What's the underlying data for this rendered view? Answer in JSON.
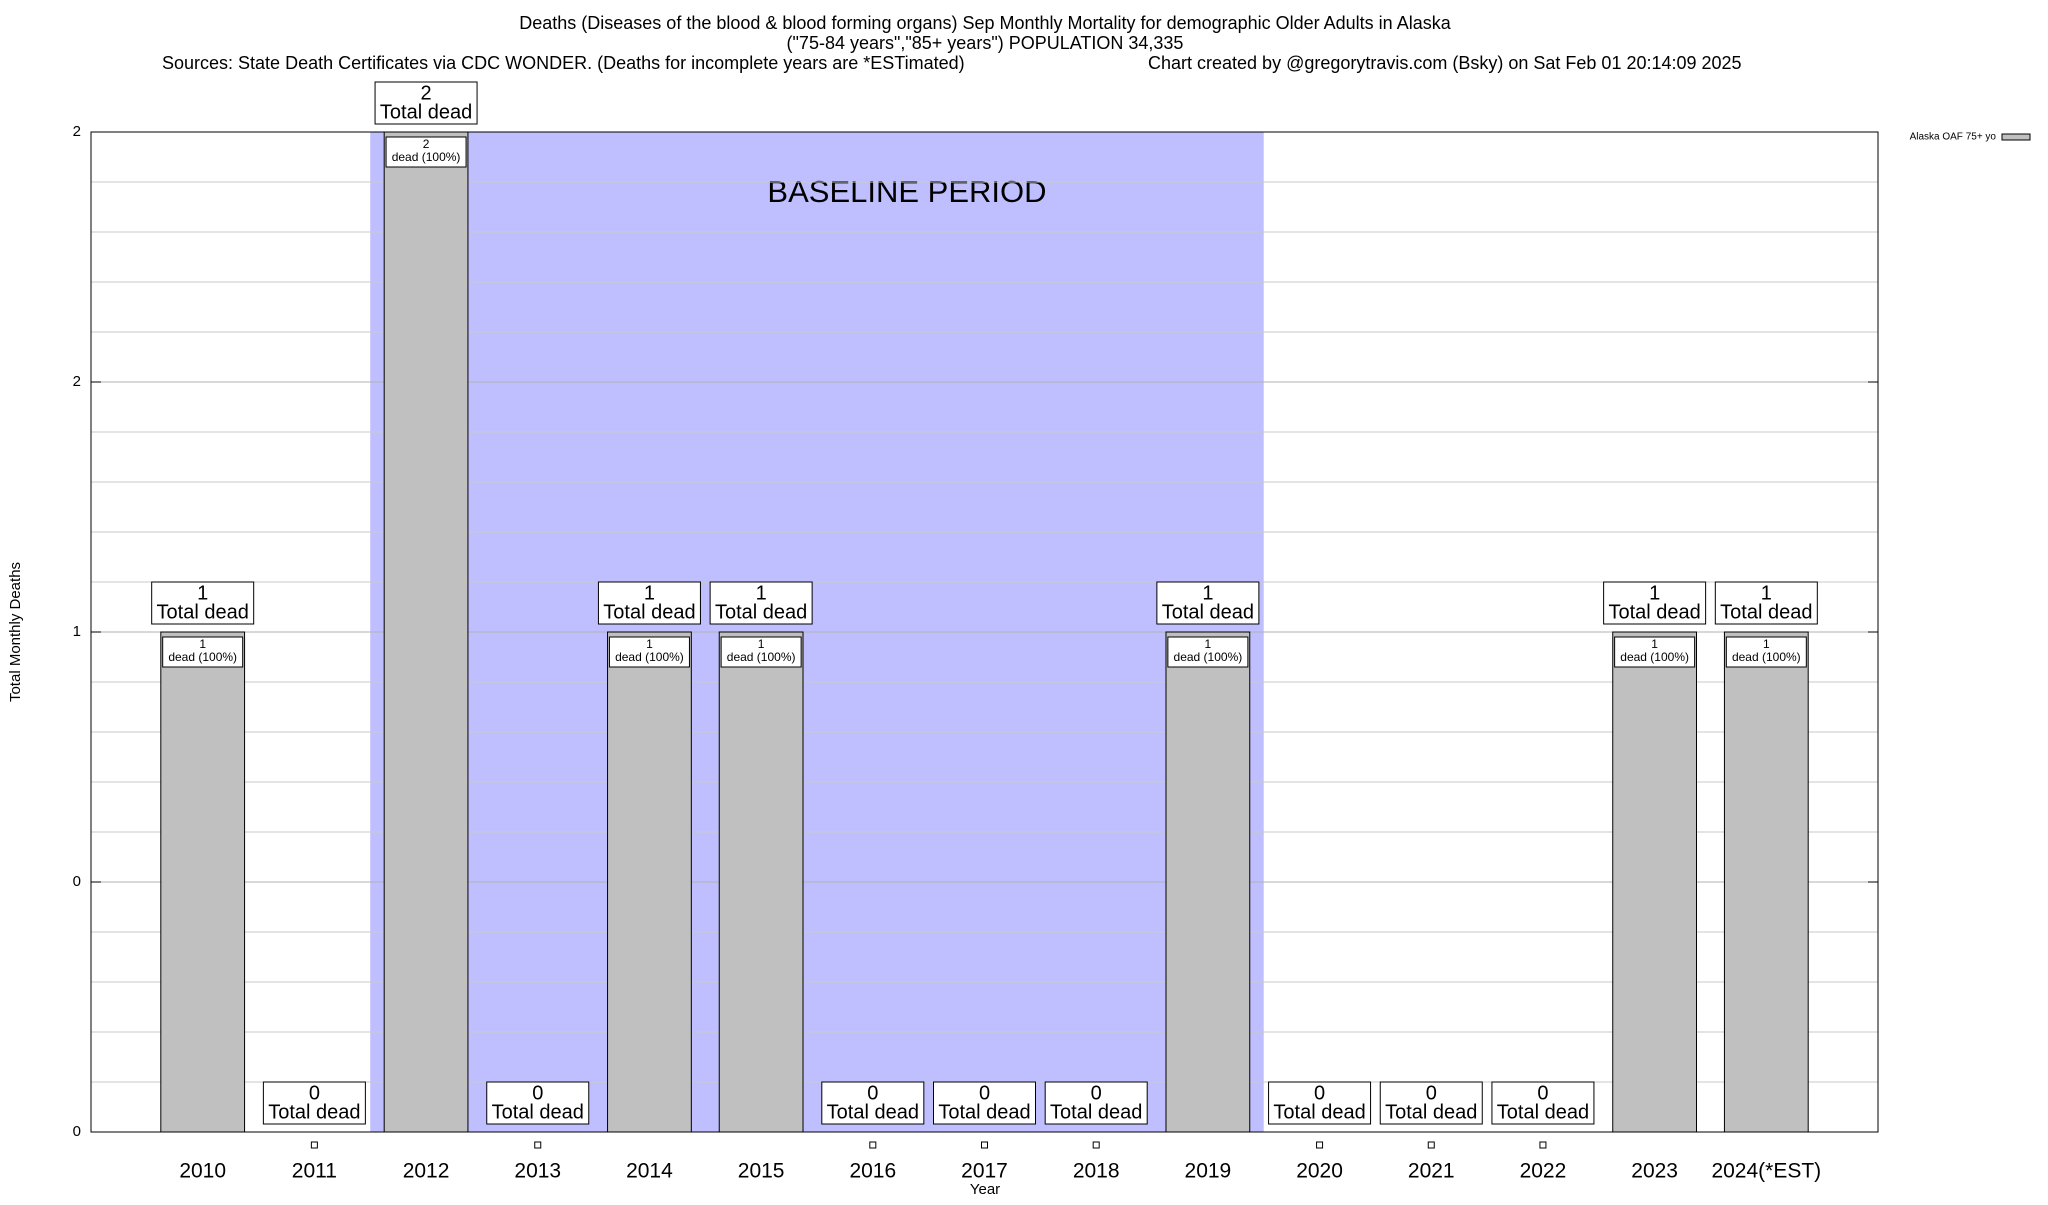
{
  "chart_data": {
    "type": "bar",
    "title": "Deaths (Diseases of the blood & blood forming organs) Sep Monthly Mortality for demographic Older Adults in Alaska",
    "subtitle": "(\"75-84 years\",\"85+ years\") POPULATION 34,335",
    "sources": "Sources: State Death Certificates via CDC WONDER. (Deaths for incomplete years are *ESTimated)",
    "credit": "Chart created by @gregorytravis.com (Bsky) on Sat Feb 01 20:14:09 2025",
    "x_label": "Year",
    "y_label": "Total Monthly Deaths",
    "categories": [
      "2010",
      "2011",
      "2012",
      "2013",
      "2014",
      "2015",
      "2016",
      "2017",
      "2018",
      "2019",
      "2020",
      "2021",
      "2022",
      "2023",
      "2024(*EST)"
    ],
    "series": [
      {
        "name": "Alaska OAF 75+ yo",
        "color": "#c0c0c0",
        "values": [
          1,
          0,
          2,
          0,
          1,
          1,
          0,
          0,
          0,
          1,
          0,
          0,
          0,
          1,
          1
        ]
      }
    ],
    "total_label": "Total dead",
    "inner_label": "dead (100%)",
    "annotation": {
      "text": "BASELINE PERIOD",
      "from": "2012",
      "to": "2019",
      "color": "#bfbfff"
    },
    "ylim": [
      0,
      2
    ],
    "yticks": [
      0,
      {
        "value": 0.5,
        "label": "0"
      },
      1,
      {
        "value": 1.5,
        "label": "2"
      },
      2
    ],
    "grid": true,
    "legend": "top-right"
  }
}
